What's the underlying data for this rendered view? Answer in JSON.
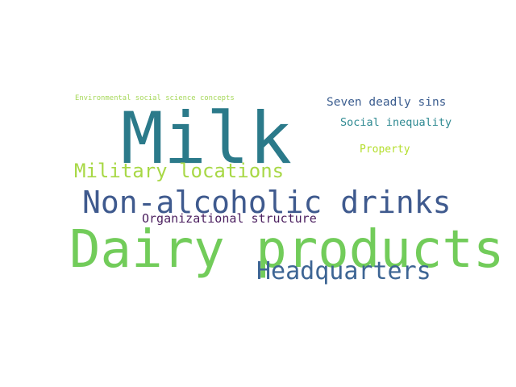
{
  "words": [
    {
      "text": "Milk",
      "color": "#2b7a8a"
    },
    {
      "text": "Dairy products",
      "color": "#72cc5a"
    },
    {
      "text": "Non-alcoholic drinks",
      "color": "#3f5a8e"
    },
    {
      "text": "Headquarters",
      "color": "#3d6594"
    },
    {
      "text": "Military locations",
      "color": "#a8d846"
    },
    {
      "text": "Organizational structure",
      "color": "#4b1f5f"
    },
    {
      "text": "Seven deadly sins",
      "color": "#3b5d8f"
    },
    {
      "text": "Social inequality",
      "color": "#2f8a92"
    },
    {
      "text": "Property",
      "color": "#b4de2c"
    },
    {
      "text": "Environmental social science concepts",
      "color": "#a6d85a"
    }
  ]
}
